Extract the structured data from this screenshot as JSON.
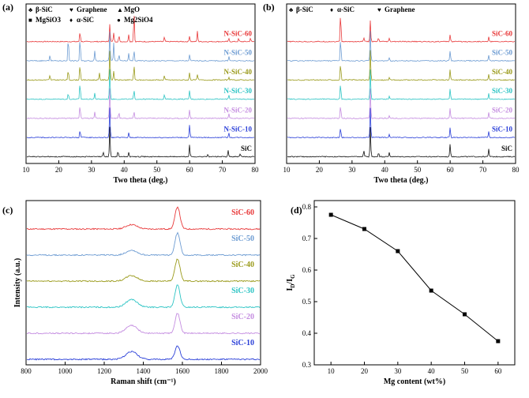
{
  "chart_data": [
    {
      "id": "a",
      "type": "line",
      "panel_label": "(a)",
      "xlabel": "Two theta (deg.)",
      "xlim": [
        10,
        80
      ],
      "xticks": [
        10,
        20,
        30,
        40,
        50,
        60,
        70,
        80
      ],
      "legend": [
        {
          "symbol": "♣",
          "text": "β-SiC"
        },
        {
          "symbol": "♥",
          "text": "Graphene"
        },
        {
          "symbol": "▲",
          "text": "MgO"
        },
        {
          "symbol": "■",
          "text": "MgSiO3"
        },
        {
          "symbol": "♦",
          "text": "α-SiC"
        },
        {
          "symbol": "●",
          "text": "Mg2SiO4"
        }
      ],
      "series": [
        {
          "name": "N-SiC-60",
          "color": "#e8393a",
          "peaks": [
            [
              26.5,
              0.35
            ],
            [
              35.6,
              0.6
            ],
            [
              36.8,
              0.3
            ],
            [
              38.4,
              0.2
            ],
            [
              41.4,
              0.25
            ],
            [
              43.0,
              1.0
            ],
            [
              52.3,
              0.15
            ],
            [
              60.0,
              0.2
            ],
            [
              62.4,
              0.35
            ],
            [
              72.0,
              0.1
            ],
            [
              75.0,
              0.1
            ],
            [
              78.6,
              0.12
            ]
          ]
        },
        {
          "name": "N-SiC-50",
          "color": "#6c9bd2",
          "peaks": [
            [
              17.3,
              0.2
            ],
            [
              22.9,
              0.85
            ],
            [
              26.5,
              0.8
            ],
            [
              31.0,
              0.35
            ],
            [
              35.6,
              1.0
            ],
            [
              36.8,
              0.6
            ],
            [
              38.4,
              0.2
            ],
            [
              41.4,
              0.25
            ],
            [
              43.0,
              0.35
            ],
            [
              60.0,
              0.2
            ],
            [
              72.0,
              0.15
            ]
          ]
        },
        {
          "name": "N-SiC-40",
          "color": "#9a9a1a",
          "peaks": [
            [
              17.3,
              0.15
            ],
            [
              22.9,
              0.35
            ],
            [
              26.5,
              0.55
            ],
            [
              32.4,
              0.25
            ],
            [
              35.6,
              1.0
            ],
            [
              36.8,
              0.3
            ],
            [
              43.0,
              0.5
            ],
            [
              52.3,
              0.15
            ],
            [
              60.0,
              0.25
            ],
            [
              62.4,
              0.2
            ],
            [
              72.0,
              0.1
            ]
          ]
        },
        {
          "name": "N-SiC-30",
          "color": "#2cc4c4",
          "peaks": [
            [
              22.9,
              0.2
            ],
            [
              26.5,
              0.55
            ],
            [
              31.0,
              0.2
            ],
            [
              35.6,
              1.0
            ],
            [
              43.0,
              0.3
            ],
            [
              52.3,
              0.15
            ],
            [
              60.0,
              0.3
            ],
            [
              72.0,
              0.15
            ]
          ]
        },
        {
          "name": "N-SiC-20",
          "color": "#c48ce0",
          "peaks": [
            [
              26.5,
              0.45
            ],
            [
              31.0,
              0.2
            ],
            [
              35.6,
              1.0
            ],
            [
              38.4,
              0.2
            ],
            [
              43.0,
              0.25
            ],
            [
              60.0,
              0.3
            ],
            [
              72.0,
              0.15
            ]
          ]
        },
        {
          "name": "N-SiC-10",
          "color": "#2a3fd8",
          "peaks": [
            [
              26.5,
              0.25
            ],
            [
              35.6,
              1.0
            ],
            [
              41.4,
              0.15
            ],
            [
              60.0,
              0.45
            ],
            [
              72.0,
              0.15
            ]
          ]
        },
        {
          "name": "SiC",
          "color": "#111111",
          "peaks": [
            [
              33.6,
              0.15
            ],
            [
              35.6,
              1.0
            ],
            [
              38.1,
              0.2
            ],
            [
              41.4,
              0.15
            ],
            [
              60.0,
              0.4
            ],
            [
              65.6,
              0.1
            ],
            [
              71.8,
              0.2
            ],
            [
              75.5,
              0.1
            ]
          ]
        }
      ]
    },
    {
      "id": "b",
      "type": "line",
      "panel_label": "(b)",
      "xlabel": "Two theta (deg.)",
      "xlim": [
        10,
        80
      ],
      "xticks": [
        10,
        20,
        30,
        40,
        50,
        60,
        70,
        80
      ],
      "legend": [
        {
          "symbol": "♣",
          "text": "β-SiC"
        },
        {
          "symbol": "♦",
          "text": "α-SiC"
        },
        {
          "symbol": "♥",
          "text": "Graphene"
        }
      ],
      "series": [
        {
          "name": "SiC-60",
          "color": "#e8393a",
          "peaks": [
            [
              26.5,
              1.0
            ],
            [
              33.6,
              0.15
            ],
            [
              35.6,
              0.7
            ],
            [
              38.1,
              0.12
            ],
            [
              41.4,
              0.1
            ],
            [
              60.0,
              0.25
            ],
            [
              71.8,
              0.15
            ]
          ]
        },
        {
          "name": "SiC-50",
          "color": "#6c9bd2",
          "peaks": [
            [
              26.5,
              0.8
            ],
            [
              35.6,
              1.0
            ],
            [
              41.4,
              0.1
            ],
            [
              60.0,
              0.35
            ],
            [
              71.8,
              0.2
            ]
          ]
        },
        {
          "name": "SiC-40",
          "color": "#9a9a1a",
          "peaks": [
            [
              26.5,
              0.6
            ],
            [
              35.6,
              1.0
            ],
            [
              41.4,
              0.1
            ],
            [
              60.0,
              0.35
            ],
            [
              71.8,
              0.2
            ]
          ]
        },
        {
          "name": "SiC-30",
          "color": "#2cc4c4",
          "peaks": [
            [
              26.5,
              0.55
            ],
            [
              35.6,
              1.0
            ],
            [
              41.4,
              0.1
            ],
            [
              60.0,
              0.35
            ],
            [
              71.8,
              0.2
            ]
          ]
        },
        {
          "name": "SiC-20",
          "color": "#c48ce0",
          "peaks": [
            [
              26.5,
              0.45
            ],
            [
              35.6,
              1.0
            ],
            [
              41.4,
              0.1
            ],
            [
              60.0,
              0.35
            ],
            [
              71.8,
              0.2
            ]
          ]
        },
        {
          "name": "SiC-10",
          "color": "#2a3fd8",
          "peaks": [
            [
              26.5,
              0.35
            ],
            [
              35.6,
              1.0
            ],
            [
              41.4,
              0.1
            ],
            [
              60.0,
              0.35
            ],
            [
              71.8,
              0.2
            ]
          ]
        },
        {
          "name": "SiC",
          "color": "#111111",
          "peaks": [
            [
              33.6,
              0.2
            ],
            [
              35.6,
              1.0
            ],
            [
              38.1,
              0.15
            ],
            [
              41.4,
              0.15
            ],
            [
              60.0,
              0.45
            ],
            [
              71.8,
              0.25
            ]
          ]
        }
      ]
    },
    {
      "id": "c",
      "type": "line",
      "panel_label": "(c)",
      "xlabel": "Raman shift (cm⁻¹)",
      "ylabel": "Intensity (a.u.)",
      "xlim": [
        800,
        2000
      ],
      "xticks": [
        800,
        1000,
        1200,
        1400,
        1600,
        1800,
        2000
      ],
      "series": [
        {
          "name": "SiC-60",
          "color": "#e8393a",
          "d_band": 0.2,
          "g_band": 1.0
        },
        {
          "name": "SiC-50",
          "color": "#6c9bd2",
          "d_band": 0.22,
          "g_band": 1.0
        },
        {
          "name": "SiC-40",
          "color": "#9a9a1a",
          "d_band": 0.25,
          "g_band": 1.0
        },
        {
          "name": "SiC-30",
          "color": "#2cc4c4",
          "d_band": 0.35,
          "g_band": 1.0
        },
        {
          "name": "SiC-20",
          "color": "#c48ce0",
          "d_band": 0.35,
          "g_band": 0.9
        },
        {
          "name": "SiC-10",
          "color": "#2a3fd8",
          "d_band": 0.35,
          "g_band": 0.6
        }
      ]
    },
    {
      "id": "d",
      "type": "line",
      "panel_label": "(d)",
      "xlabel": "Mg content (wt%)",
      "ylabel_main": "I",
      "ylabel_sub1": "D",
      "ylabel_sep": "/I",
      "ylabel_sub2": "G",
      "xlim": [
        5,
        65
      ],
      "ylim": [
        0.3,
        0.82
      ],
      "xticks": [
        10,
        20,
        30,
        40,
        50,
        60
      ],
      "yticks": [
        0.3,
        0.4,
        0.5,
        0.6,
        0.7,
        0.8
      ],
      "x": [
        10,
        20,
        30,
        40,
        50,
        60
      ],
      "y": [
        0.775,
        0.73,
        0.66,
        0.535,
        0.46,
        0.375
      ]
    }
  ]
}
